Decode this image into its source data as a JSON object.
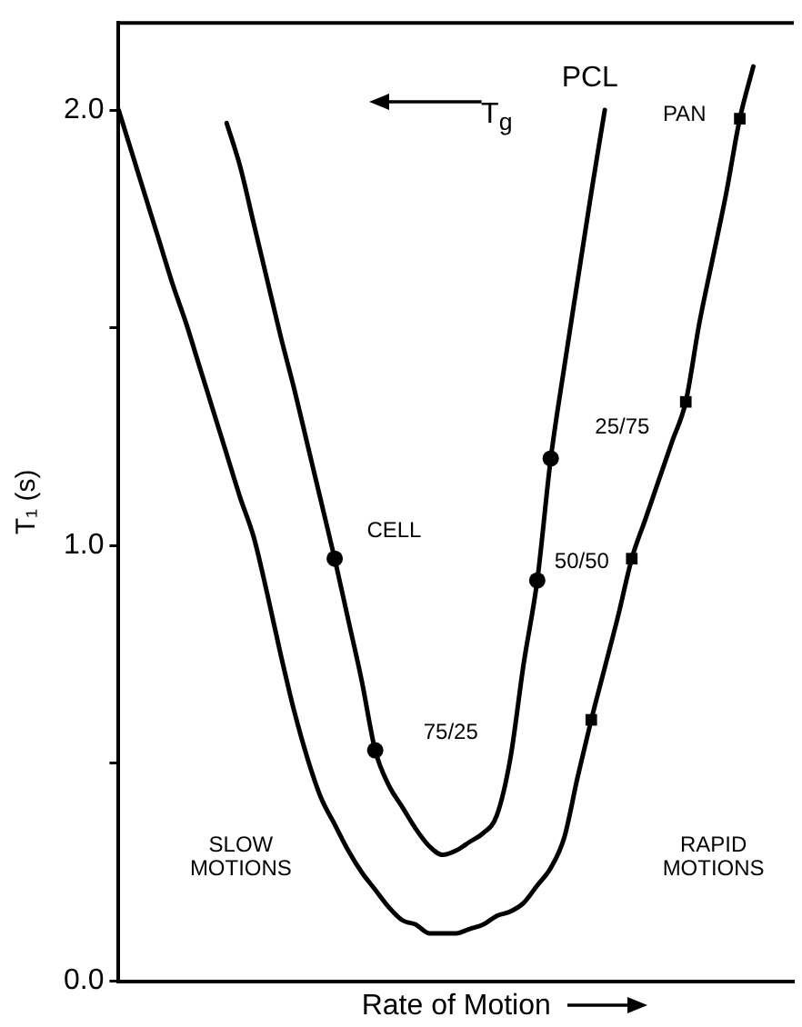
{
  "chart_data": {
    "type": "line",
    "xlabel": "Rate of Motion",
    "ylabel": "T₁ (s)",
    "categories": [
      null,
      null,
      null,
      null,
      null,
      null,
      null,
      null,
      null,
      null,
      null,
      null,
      null,
      null,
      null,
      null,
      null,
      null,
      null,
      null,
      null,
      null,
      null,
      null,
      null,
      null,
      null,
      null,
      null,
      null,
      null,
      null,
      null,
      null,
      null,
      null,
      null,
      null,
      null,
      null,
      null,
      null,
      null,
      null,
      null,
      null,
      null,
      null,
      null,
      null,
      null
    ],
    "series": [
      {
        "color": "#000000",
        "marker": "none",
        "values": [
          2.0,
          1.9,
          1.8,
          1.7,
          1.6,
          1.51,
          1.41,
          1.31,
          1.21,
          1.11,
          1.02,
          0.89,
          0.75,
          0.62,
          0.51,
          0.42,
          0.36,
          0.3,
          0.25,
          0.21,
          0.17,
          0.14,
          0.13,
          0.11,
          0.11,
          0.11,
          0.12,
          0.13,
          0.15,
          0.16,
          0.18,
          0.22,
          0.26,
          0.33,
          0.47,
          0.6,
          0.72,
          0.84,
          0.97,
          1.06,
          1.15,
          1.24,
          1.33,
          1.51,
          1.66,
          1.81,
          1.98,
          2.1,
          null,
          null,
          null
        ]
      },
      {
        "color": "#000000",
        "marker": "none",
        "values": [
          null,
          null,
          null,
          null,
          null,
          null,
          null,
          null,
          1.97,
          1.87,
          1.74,
          1.61,
          1.48,
          1.36,
          1.23,
          1.1,
          0.97,
          0.83,
          0.69,
          0.53,
          0.45,
          0.4,
          0.35,
          0.31,
          0.29,
          0.3,
          0.32,
          0.34,
          0.38,
          0.51,
          0.73,
          0.92,
          1.2,
          1.41,
          1.61,
          1.81,
          2.0,
          null,
          null,
          null,
          null,
          null,
          null,
          null,
          null,
          null,
          null,
          null,
          null,
          null,
          null
        ]
      },
      {
        "type": "scatter",
        "color": "#000000",
        "marker": "circle",
        "values": [
          null,
          null,
          null,
          null,
          null,
          null,
          null,
          null,
          null,
          null,
          null,
          null,
          null,
          null,
          null,
          null,
          0.97,
          null,
          null,
          0.53,
          null,
          null,
          null,
          null,
          null,
          null,
          null,
          null,
          null,
          null,
          null,
          0.92,
          1.2,
          null,
          null,
          null,
          null,
          null,
          null,
          null,
          null,
          null,
          null,
          null,
          null,
          null,
          null,
          null,
          null,
          null,
          null
        ]
      },
      {
        "type": "scatter",
        "color": "#000000",
        "marker": "square",
        "values": [
          null,
          null,
          null,
          null,
          null,
          null,
          null,
          null,
          null,
          null,
          null,
          null,
          null,
          null,
          null,
          null,
          null,
          null,
          null,
          null,
          null,
          null,
          null,
          null,
          null,
          null,
          null,
          null,
          null,
          null,
          null,
          null,
          null,
          null,
          null,
          0.6,
          null,
          null,
          0.97,
          null,
          null,
          null,
          1.33,
          null,
          null,
          null,
          1.98,
          null,
          null,
          null,
          null
        ]
      }
    ],
    "ylim": [
      0,
      2.2
    ],
    "yticks": [
      {
        "value": 0,
        "label": "0.0"
      },
      {
        "value": 0.5,
        "label": null
      },
      {
        "value": 1,
        "label": "1.0"
      },
      {
        "value": 1.5,
        "label": null
      },
      {
        "value": 2,
        "label": "2.0"
      }
    ],
    "tick_labels": "y",
    "annotations": [
      "PCL",
      "PAN",
      "T$_{g}$",
      "25/75",
      "CELL",
      "50/50",
      "75/25",
      "SLOW\nMOTIONS",
      "RAPID\nMOTIONS"
    ]
  }
}
